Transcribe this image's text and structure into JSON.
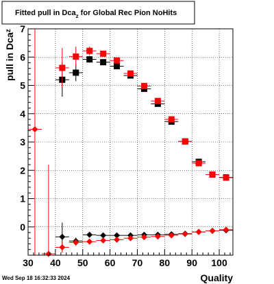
{
  "title_main": "Fitted pull in Dca",
  "title_sub": "z",
  "title_rest": " for Global Rec Pion NoHits",
  "ylabel_main": "pull in Dca",
  "ylabel_sub": "z",
  "xlabel": "Quality",
  "timestamp": "Wed Sep 18 16:32:33 2024",
  "colors": {
    "red": "#ff0000",
    "black": "#000000"
  },
  "chart_data": {
    "type": "scatter",
    "title": "Fitted pull in Dca_z for Global Rec Pion NoHits",
    "xlabel": "Quality",
    "ylabel": "pull in Dca_z",
    "xlim": [
      30,
      105
    ],
    "ylim": [
      -1,
      7
    ],
    "xticks": [
      30,
      40,
      50,
      60,
      70,
      80,
      90,
      100
    ],
    "yticks": [
      0,
      1,
      2,
      3,
      4,
      5,
      6,
      7
    ],
    "grid": true,
    "series": [
      {
        "marker": "square",
        "color": "#000000",
        "points": [
          {
            "x": 42.5,
            "y": 5.2,
            "err": 0.6
          },
          {
            "x": 47.5,
            "y": 5.45,
            "err": 0.3
          },
          {
            "x": 52.5,
            "y": 5.92,
            "err": 0.12
          },
          {
            "x": 57.5,
            "y": 5.82,
            "err": 0.08
          },
          {
            "x": 62.5,
            "y": 5.68,
            "err": 0.06
          },
          {
            "x": 67.5,
            "y": 5.35,
            "err": 0.05
          },
          {
            "x": 72.5,
            "y": 4.88,
            "err": 0.04
          },
          {
            "x": 77.5,
            "y": 4.35,
            "err": 0.04
          },
          {
            "x": 82.5,
            "y": 3.72,
            "err": 0.04
          },
          {
            "x": 87.5,
            "y": 3.02,
            "err": 0.03
          },
          {
            "x": 92.5,
            "y": 2.3,
            "err": 0.03
          },
          {
            "x": 97.5,
            "y": 1.85,
            "err": 0.03
          },
          {
            "x": 102.5,
            "y": 1.75,
            "err": 0.03
          }
        ]
      },
      {
        "marker": "square",
        "color": "#ff0000",
        "points": [
          {
            "x": 42.5,
            "y": 5.62,
            "err": 0.7
          },
          {
            "x": 47.5,
            "y": 6.02,
            "err": 0.35
          },
          {
            "x": 52.5,
            "y": 6.22,
            "err": 0.15
          },
          {
            "x": 57.5,
            "y": 6.12,
            "err": 0.1
          },
          {
            "x": 62.5,
            "y": 5.88,
            "err": 0.07
          },
          {
            "x": 67.5,
            "y": 5.42,
            "err": 0.05
          },
          {
            "x": 72.5,
            "y": 4.98,
            "err": 0.05
          },
          {
            "x": 77.5,
            "y": 4.45,
            "err": 0.04
          },
          {
            "x": 82.5,
            "y": 3.8,
            "err": 0.04
          },
          {
            "x": 87.5,
            "y": 3.02,
            "err": 0.03
          },
          {
            "x": 92.5,
            "y": 2.25,
            "err": 0.03
          },
          {
            "x": 97.5,
            "y": 1.85,
            "err": 0.03
          },
          {
            "x": 102.5,
            "y": 1.74,
            "err": 0.03
          }
        ]
      },
      {
        "marker": "diamond",
        "color": "#000000",
        "points": [
          {
            "x": 42.5,
            "y": -0.35,
            "err": 0.5
          },
          {
            "x": 47.5,
            "y": -0.5,
            "err": 0.12
          },
          {
            "x": 52.5,
            "y": -0.28,
            "err": 0.06
          },
          {
            "x": 57.5,
            "y": -0.3,
            "err": 0.04
          },
          {
            "x": 62.5,
            "y": -0.3,
            "err": 0.03
          },
          {
            "x": 67.5,
            "y": -0.3,
            "err": 0.03
          },
          {
            "x": 72.5,
            "y": -0.28,
            "err": 0.03
          },
          {
            "x": 77.5,
            "y": -0.28,
            "err": 0.03
          },
          {
            "x": 82.5,
            "y": -0.26,
            "err": 0.02
          },
          {
            "x": 87.5,
            "y": -0.24,
            "err": 0.02
          },
          {
            "x": 92.5,
            "y": -0.18,
            "err": 0.02
          },
          {
            "x": 97.5,
            "y": -0.14,
            "err": 0.02
          },
          {
            "x": 102.5,
            "y": -0.12,
            "err": 0.02
          }
        ]
      },
      {
        "marker": "diamond",
        "color": "#ff0000",
        "points": [
          {
            "x": 32.5,
            "y": 3.45,
            "err": 4.5
          },
          {
            "x": 37.5,
            "y": -0.95,
            "err": 3.15
          },
          {
            "x": 42.5,
            "y": -0.72,
            "err": 0.2
          },
          {
            "x": 47.5,
            "y": -0.55,
            "err": 0.12
          },
          {
            "x": 52.5,
            "y": -0.52,
            "err": 0.06
          },
          {
            "x": 57.5,
            "y": -0.48,
            "err": 0.04
          },
          {
            "x": 62.5,
            "y": -0.45,
            "err": 0.03
          },
          {
            "x": 67.5,
            "y": -0.4,
            "err": 0.03
          },
          {
            "x": 72.5,
            "y": -0.36,
            "err": 0.03
          },
          {
            "x": 77.5,
            "y": -0.34,
            "err": 0.03
          },
          {
            "x": 82.5,
            "y": -0.3,
            "err": 0.02
          },
          {
            "x": 87.5,
            "y": -0.25,
            "err": 0.02
          },
          {
            "x": 92.5,
            "y": -0.18,
            "err": 0.02
          },
          {
            "x": 97.5,
            "y": -0.14,
            "err": 0.02
          },
          {
            "x": 102.5,
            "y": -0.1,
            "err": 0.02
          }
        ]
      }
    ]
  }
}
